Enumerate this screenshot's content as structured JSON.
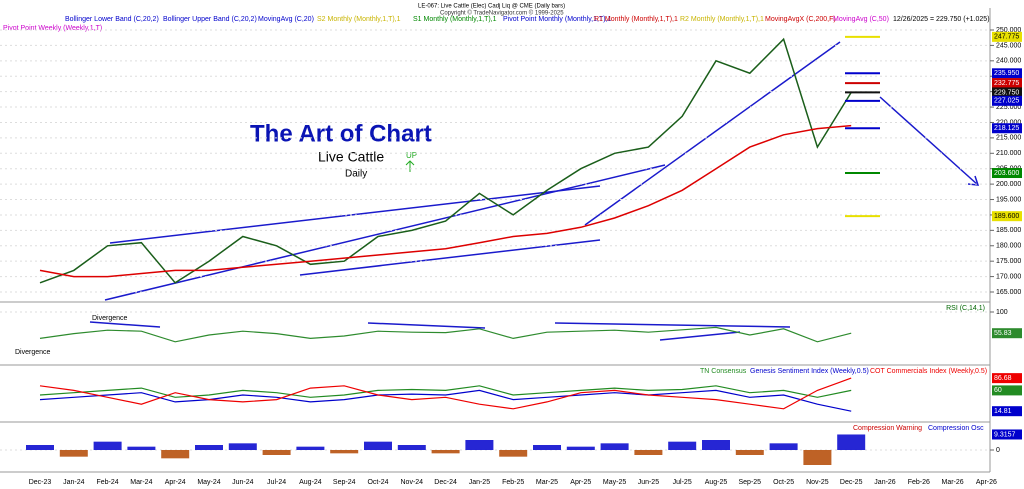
{
  "header": {
    "symbol": "LE-067: Live Cattle (Elec) Cadj Liq @ CME  (Daily bars)",
    "copyright": "Copyright © TradeNavigator.com © 1999-2025",
    "last": "12/26/2025 = 229.750 (+1.025)",
    "pivot": "Pivot Point Weekly (Weekly,1,T)",
    "indicators": [
      {
        "label": "Bollinger Lower Band (C,20,2)",
        "color": "#0000cc"
      },
      {
        "label": "Bollinger Upper Band (C,20,2)",
        "color": "#0000cc"
      },
      {
        "label": "MovingAvg (C,20)",
        "color": "#0000cc"
      },
      {
        "label": "S2 Monthly (Monthly,1,T),1",
        "color": "#c8b400"
      },
      {
        "label": "S1 Monthly (Monthly,1,T),1",
        "color": "#008800"
      },
      {
        "label": "Pivot Point Monthly (Monthly,1,T),1",
        "color": "#0000cc"
      },
      {
        "label": "R1 Monthly (Monthly,1,T),1",
        "color": "#cc0000"
      },
      {
        "label": "R2 Monthly (Monthly,1,T),1",
        "color": "#c8b400"
      },
      {
        "label": "MovingAvgX (C,200,F)",
        "color": "#cc0000"
      },
      {
        "label": "MovingAvg (C,50)",
        "color": "#cc00cc"
      }
    ]
  },
  "annotations": {
    "title": "The Art of Chart",
    "subtitle": "Live Cattle",
    "timeframe": "Daily",
    "signal": "UP",
    "divergence": [
      "Divergence",
      "Divergence"
    ]
  },
  "categories": [
    "Dec-23",
    "Jan-24",
    "Feb-24",
    "Mar-24",
    "Apr-24",
    "May-24",
    "Jun-24",
    "Jul-24",
    "Aug-24",
    "Sep-24",
    "Oct-24",
    "Nov-24",
    "Dec-24",
    "Jan-25",
    "Feb-25",
    "Mar-25",
    "Apr-25",
    "May-25",
    "Jun-25",
    "Jul-25",
    "Aug-25",
    "Sep-25",
    "Oct-25",
    "Nov-25",
    "Dec-25",
    "Jan-26",
    "Feb-26",
    "Mar-26",
    "Apr-26"
  ],
  "chart_data": [
    {
      "type": "line",
      "ylim": [
        165,
        250
      ],
      "yticks": [
        {
          "value": 165,
          "label": "165.000"
        },
        {
          "value": 170,
          "label": "170.000"
        },
        {
          "value": 175,
          "label": "175.000"
        },
        {
          "value": 180,
          "label": "180.000"
        },
        {
          "value": 185,
          "label": "185.000"
        },
        {
          "value": 190,
          "label": "190.000"
        },
        {
          "value": 195,
          "label": "195.000"
        },
        {
          "value": 200,
          "label": "200.000"
        },
        {
          "value": 205,
          "label": "205.000"
        },
        {
          "value": 210,
          "label": "210.000"
        },
        {
          "value": 215,
          "label": "215.000"
        },
        {
          "value": 220,
          "label": "220.000"
        },
        {
          "value": 225,
          "label": "225.000"
        },
        {
          "value": 230,
          "label": "230.000"
        },
        {
          "value": 235,
          "label": "235.000"
        },
        {
          "value": 240,
          "label": "240.000"
        },
        {
          "value": 245,
          "label": "245.000"
        },
        {
          "value": 250,
          "label": "250.000"
        }
      ],
      "series": [
        {
          "name": "Close",
          "color": "#1a5e1a",
          "values": [
            168,
            172,
            180,
            181,
            168,
            175,
            183,
            180,
            174,
            175,
            183,
            185,
            188,
            197,
            190,
            198,
            205,
            210,
            212,
            222,
            240,
            236,
            247,
            212,
            229.75,
            null,
            null,
            null,
            null
          ]
        },
        {
          "name": "MovingAvgX (C,200,F)",
          "color": "#dd0000",
          "values": [
            172,
            170,
            170,
            171,
            172,
            172,
            173,
            174,
            175,
            176,
            177,
            178,
            179,
            181,
            183,
            184,
            186,
            189,
            193,
            198,
            205,
            212,
            216,
            218,
            219,
            null,
            null,
            null,
            null
          ]
        }
      ],
      "levels": [
        {
          "value": 247.775,
          "label": "247.775",
          "color": "#e8e000"
        },
        {
          "value": 235.95,
          "label": "235.950",
          "color": "#0000cc"
        },
        {
          "value": 232.775,
          "label": "232.775",
          "color": "#cc0000"
        },
        {
          "value": 229.75,
          "label": "229.750",
          "color": "#111111"
        },
        {
          "value": 227.025,
          "label": "227.025",
          "color": "#0000cc"
        },
        {
          "value": 218.125,
          "label": "218.125",
          "color": "#0000cc"
        },
        {
          "value": 203.6,
          "label": "203.600",
          "color": "#008800"
        },
        {
          "value": 189.6,
          "label": "189.600",
          "color": "#e8e000"
        }
      ]
    },
    {
      "type": "line",
      "title": "RSI (C,14,1)",
      "ylim": [
        0,
        100
      ],
      "yticks": [
        100
      ],
      "series": [
        {
          "name": "RSI",
          "color": "#2e8b2e",
          "values": [
            45,
            55,
            62,
            60,
            38,
            52,
            60,
            55,
            45,
            50,
            60,
            58,
            57,
            65,
            45,
            58,
            60,
            62,
            58,
            63,
            68,
            52,
            65,
            38,
            55.83,
            null,
            null,
            null,
            null
          ]
        }
      ]
    },
    {
      "type": "line",
      "ylim": [
        0,
        100
      ],
      "series": [
        {
          "name": "TN Consensus",
          "color": "#228b22",
          "values": [
            50,
            55,
            60,
            65,
            45,
            50,
            60,
            55,
            45,
            50,
            60,
            62,
            60,
            70,
            50,
            55,
            60,
            65,
            60,
            62,
            70,
            55,
            60,
            45,
            60,
            null,
            null,
            null,
            null
          ]
        },
        {
          "name": "Genesis Sentiment Index (Weekly,0.5)",
          "color": "#0000cc",
          "values": [
            40,
            45,
            50,
            55,
            35,
            40,
            50,
            45,
            35,
            40,
            50,
            52,
            50,
            60,
            40,
            45,
            50,
            55,
            50,
            55,
            60,
            45,
            50,
            30,
            14.81,
            null,
            null,
            null,
            null
          ]
        },
        {
          "name": "COT Commercials Index (Weekly,0.5)",
          "color": "#ee0000",
          "values": [
            70,
            60,
            45,
            30,
            55,
            40,
            35,
            40,
            65,
            70,
            50,
            40,
            45,
            30,
            20,
            35,
            55,
            60,
            50,
            45,
            40,
            30,
            20,
            60,
            86.68,
            null,
            null,
            null,
            null
          ]
        }
      ]
    },
    {
      "type": "bar",
      "ylim": [
        -15,
        15
      ],
      "yticks": [
        0
      ],
      "series": [
        {
          "name": "Compression Warning",
          "color": "#cc0000",
          "values": []
        },
        {
          "name": "Compression Osc",
          "color": "#0000cc",
          "values": [
            3,
            -4,
            5,
            2,
            -5,
            3,
            4,
            -3,
            2,
            -2,
            5,
            3,
            -2,
            6,
            -4,
            3,
            2,
            4,
            -3,
            5,
            6,
            -3,
            4,
            -9,
            9.3157,
            null,
            null,
            null,
            null
          ]
        }
      ]
    }
  ]
}
